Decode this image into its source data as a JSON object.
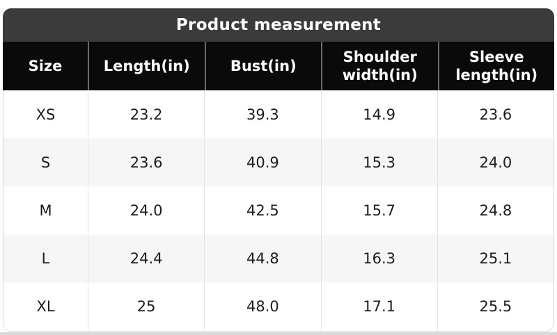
{
  "chart_data": {
    "type": "table",
    "title": "Product measurement",
    "columns": [
      "Size",
      "Length(in)",
      "Bust(in)",
      "Shoulder width(in)",
      "Sleeve length(in)"
    ],
    "rows": [
      [
        "XS",
        "23.2",
        "39.3",
        "14.9",
        "23.6"
      ],
      [
        "S",
        "23.6",
        "40.9",
        "15.3",
        "24.0"
      ],
      [
        "M",
        "24.0",
        "42.5",
        "15.7",
        "24.8"
      ],
      [
        "L",
        "24.4",
        "44.8",
        "16.3",
        "25.1"
      ],
      [
        "XL",
        "25",
        "48.0",
        "17.1",
        "25.5"
      ]
    ]
  },
  "colors": {
    "title_bar_bg": "#3b3b3b",
    "header_bg": "#0a0a0a",
    "header_text": "#ffffff",
    "row_alt_bg": "#f6f6f6",
    "text": "#1c1c1c"
  }
}
